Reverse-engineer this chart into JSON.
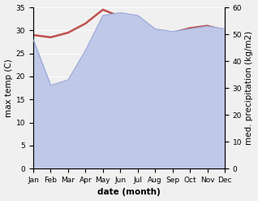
{
  "months": [
    "Jan",
    "Feb",
    "Mar",
    "Apr",
    "May",
    "Jun",
    "Jul",
    "Aug",
    "Sep",
    "Oct",
    "Nov",
    "Dec"
  ],
  "temp": [
    29,
    28.5,
    29.5,
    31.5,
    34.5,
    33,
    31,
    30,
    29.5,
    30.5,
    31,
    30
  ],
  "precip": [
    48,
    31,
    33,
    44,
    57,
    58,
    57,
    52,
    51,
    52,
    53,
    52
  ],
  "temp_color": "#c0504d",
  "precip_fill_color": "#c0c8e8",
  "precip_line_color": "#9aa8d8",
  "temp_ylim": [
    0,
    35
  ],
  "precip_ylim": [
    0,
    60
  ],
  "temp_yticks": [
    0,
    5,
    10,
    15,
    20,
    25,
    30,
    35
  ],
  "precip_yticks": [
    0,
    10,
    20,
    30,
    40,
    50,
    60
  ],
  "xlabel": "date (month)",
  "ylabel_left": "max temp (C)",
  "ylabel_right": "med. precipitation (kg/m2)",
  "bg_color": "#f0f0f0",
  "label_fontsize": 7.5,
  "tick_fontsize": 6.5
}
